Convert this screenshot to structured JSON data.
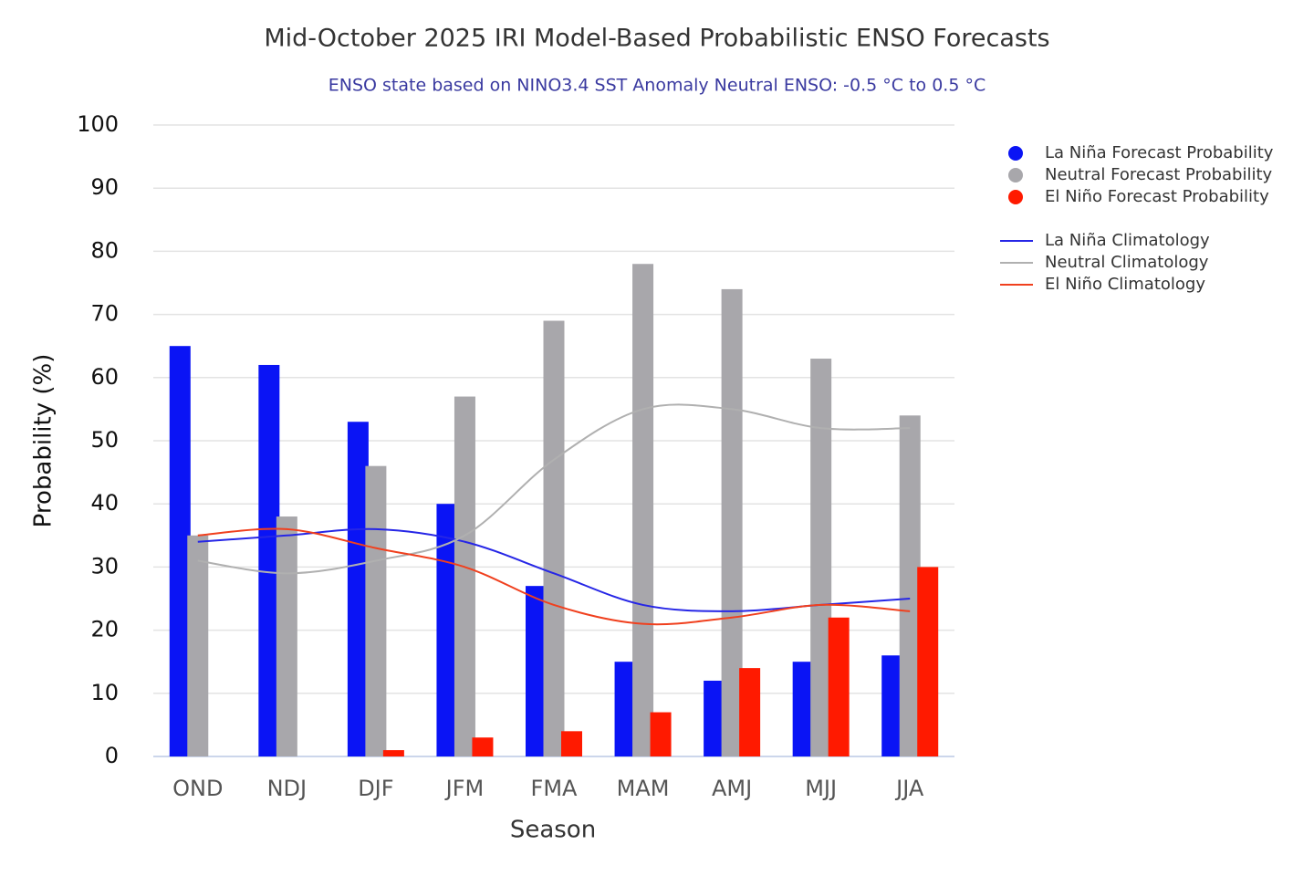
{
  "chart_data": {
    "type": "bar",
    "title": "Mid-October 2025 IRI Model-Based Probabilistic ENSO Forecasts",
    "subtitle": "ENSO state based on NINO3.4 SST Anomaly Neutral ENSO: -0.5 °C to 0.5 °C",
    "x_label": "Season",
    "y_label": "Probability (%)",
    "categories": [
      "OND",
      "NDJ",
      "DJF",
      "JFM",
      "FMA",
      "MAM",
      "AMJ",
      "MJJ",
      "JJA"
    ],
    "ylim": [
      0,
      100
    ],
    "yticks": [
      0,
      10,
      20,
      30,
      40,
      50,
      60,
      70,
      80,
      90,
      100
    ],
    "grid": true,
    "legend": "top-right",
    "series": [
      {
        "name": "La Niña Forecast Probability",
        "type": "bar",
        "color": "#0a14f5",
        "values": [
          65,
          62,
          53,
          40,
          27,
          15,
          12,
          15,
          16
        ]
      },
      {
        "name": "Neutral Forecast Probability",
        "type": "bar",
        "color": "#a8a7ab",
        "values": [
          35,
          38,
          46,
          57,
          69,
          78,
          74,
          63,
          54
        ]
      },
      {
        "name": "El Niño Forecast Probability",
        "type": "bar",
        "color": "#ff1a00",
        "values": [
          0,
          0,
          1,
          3,
          4,
          7,
          14,
          22,
          30
        ]
      },
      {
        "name": "La Niña Climatology",
        "type": "line",
        "color": "#2626e6",
        "values": [
          34,
          35,
          36,
          34,
          29,
          24,
          23,
          24,
          25
        ]
      },
      {
        "name": "Neutral Climatology",
        "type": "line",
        "color": "#b0b0b0",
        "values": [
          31,
          29,
          31,
          35,
          47,
          55,
          55,
          52,
          52
        ]
      },
      {
        "name": "El Niño Climatology",
        "type": "line",
        "color": "#f0401e",
        "values": [
          35,
          36,
          33,
          30,
          24,
          21,
          22,
          24,
          23
        ]
      }
    ]
  }
}
